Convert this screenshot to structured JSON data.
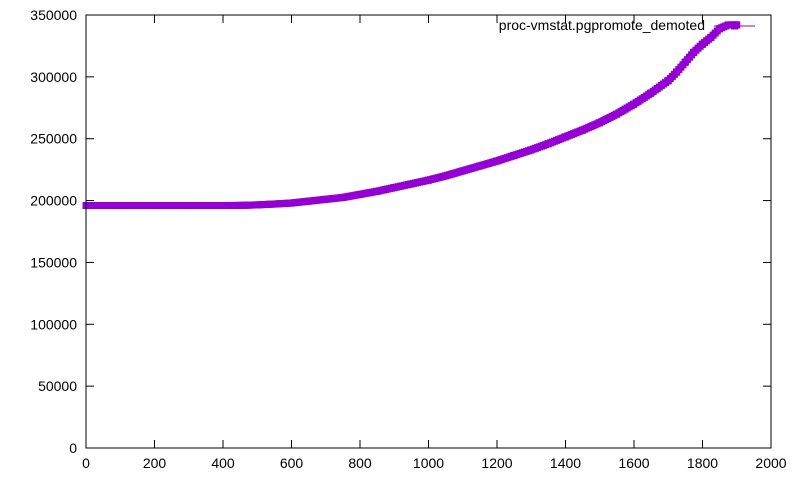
{
  "chart_data": {
    "type": "line",
    "title": "",
    "xlabel": "",
    "ylabel": "",
    "xlim": [
      0,
      2000
    ],
    "ylim": [
      0,
      350000
    ],
    "x_ticks": [
      0,
      200,
      400,
      600,
      800,
      1000,
      1200,
      1400,
      1600,
      1800,
      2000
    ],
    "y_ticks": [
      0,
      50000,
      100000,
      150000,
      200000,
      250000,
      300000,
      350000
    ],
    "x_tick_labels": [
      "0",
      "200",
      "400",
      "600",
      "800",
      "1000",
      "1200",
      "1400",
      "1600",
      "1800",
      "2000"
    ],
    "y_tick_labels": [
      "0",
      "50000",
      "100000",
      "150000",
      "200000",
      "250000",
      "300000",
      "350000"
    ],
    "grid": false,
    "legend_position": "top-right",
    "series": [
      {
        "name": "proc-vmstat.pgpromote_demoted",
        "color": "#9400d3",
        "marker": "square",
        "x": [
          0,
          100,
          200,
          300,
          400,
          450,
          500,
          550,
          600,
          650,
          700,
          750,
          800,
          850,
          900,
          950,
          1000,
          1050,
          1100,
          1150,
          1200,
          1250,
          1300,
          1350,
          1400,
          1450,
          1500,
          1550,
          1600,
          1650,
          1700,
          1725,
          1750,
          1775,
          1800,
          1825,
          1850,
          1875,
          1900
        ],
        "y": [
          196000,
          196000,
          196000,
          196000,
          196000,
          196100,
          196500,
          197200,
          198000,
          199500,
          201000,
          202500,
          205000,
          207500,
          210500,
          213500,
          216500,
          220000,
          224000,
          228000,
          232000,
          236500,
          241000,
          246000,
          251500,
          257000,
          263000,
          270000,
          278000,
          287000,
          297000,
          304000,
          312000,
          320000,
          326500,
          332000,
          339000,
          342000,
          342000
        ]
      }
    ]
  }
}
